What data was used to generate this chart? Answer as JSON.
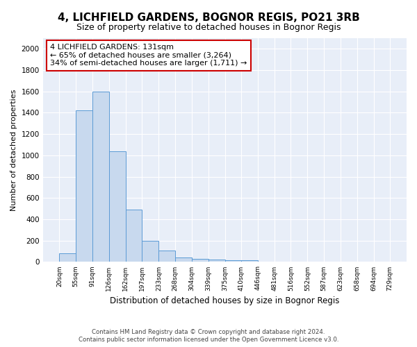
{
  "title": "4, LICHFIELD GARDENS, BOGNOR REGIS, PO21 3RB",
  "subtitle": "Size of property relative to detached houses in Bognor Regis",
  "xlabel": "Distribution of detached houses by size in Bognor Regis",
  "ylabel": "Number of detached properties",
  "footer_line1": "Contains HM Land Registry data © Crown copyright and database right 2024.",
  "footer_line2": "Contains public sector information licensed under the Open Government Licence v3.0.",
  "bin_labels": [
    "20sqm",
    "55sqm",
    "91sqm",
    "126sqm",
    "162sqm",
    "197sqm",
    "233sqm",
    "268sqm",
    "304sqm",
    "339sqm",
    "375sqm",
    "410sqm",
    "446sqm",
    "481sqm",
    "516sqm",
    "552sqm",
    "587sqm",
    "623sqm",
    "658sqm",
    "694sqm",
    "729sqm"
  ],
  "bin_edges": [
    20,
    55,
    91,
    126,
    162,
    197,
    233,
    268,
    304,
    339,
    375,
    410,
    446,
    481,
    516,
    552,
    587,
    623,
    658,
    694,
    729
  ],
  "bar_heights": [
    80,
    1420,
    1600,
    1040,
    490,
    200,
    105,
    40,
    28,
    22,
    18,
    15,
    0,
    0,
    0,
    0,
    0,
    0,
    0,
    0
  ],
  "bar_color": "#c8d9ee",
  "bar_edge_color": "#5b9bd5",
  "background_color": "#e8eef8",
  "grid_color": "#ffffff",
  "property_size": 131,
  "annotation_line1": "4 LICHFIELD GARDENS: 131sqm",
  "annotation_line2": "← 65% of detached houses are smaller (3,264)",
  "annotation_line3": "34% of semi-detached houses are larger (1,711) →",
  "annotation_box_edge_color": "#cc0000",
  "ylim": [
    0,
    2100
  ],
  "yticks": [
    0,
    200,
    400,
    600,
    800,
    1000,
    1200,
    1400,
    1600,
    1800,
    2000
  ]
}
